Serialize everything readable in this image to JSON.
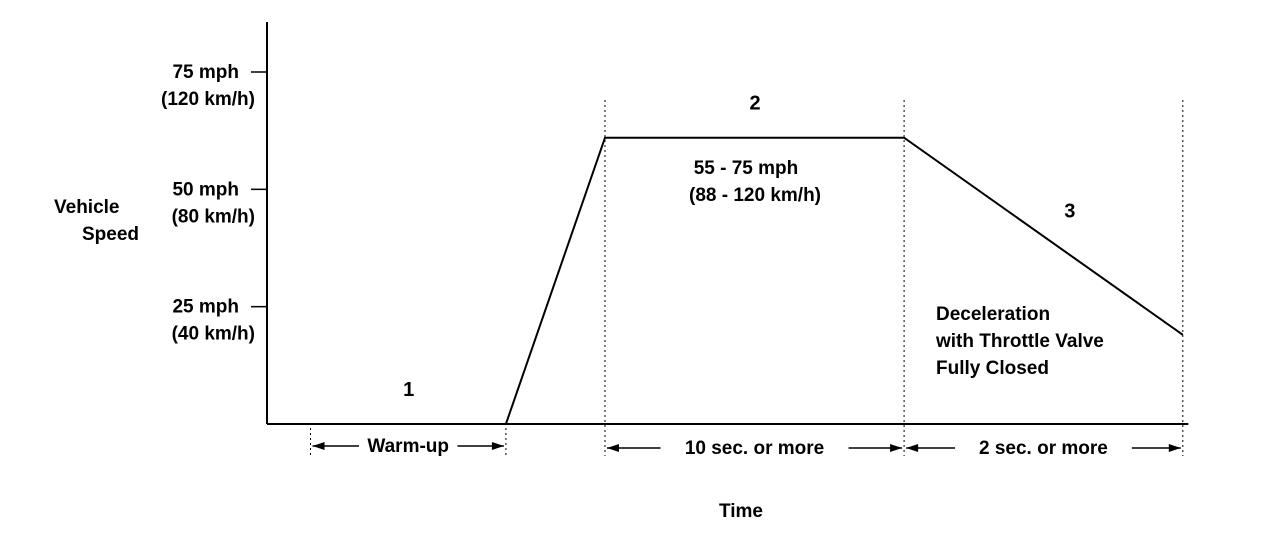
{
  "chart_data": {
    "type": "line",
    "title": "",
    "xlabel": "Time",
    "ylabel_line1": "Vehicle",
    "ylabel_line2": "Speed",
    "y_unit": "mph",
    "ylim": [
      0,
      85
    ],
    "y_ticks": [
      {
        "value": 25,
        "label": "25 mph",
        "sublabel": "(40 km/h)"
      },
      {
        "value": 50,
        "label": "50 mph",
        "sublabel": "(80 km/h)"
      },
      {
        "value": 75,
        "label": "75 mph",
        "sublabel": "(120 km/h)"
      }
    ],
    "x_unit": "relative time",
    "xlim": [
      0,
      100
    ],
    "series": [
      {
        "x": [
          4.7,
          25.8,
          36.5,
          68.8,
          98.9
        ],
        "y": [
          0,
          0,
          61,
          61,
          19
        ]
      }
    ],
    "phases": [
      {
        "label": "1",
        "x": 15.3,
        "y": 6
      },
      {
        "label": "2",
        "x": 52.7,
        "y": 67
      },
      {
        "label": "3",
        "x": 86.7,
        "y": 44
      }
    ],
    "dividers_x": [
      36.5,
      68.8,
      98.9
    ],
    "intervals": [
      {
        "label": "Warm-up",
        "x0": 4.7,
        "x1": 25.8
      },
      {
        "label": "10 sec. or more",
        "x0": 36.5,
        "x1": 68.8
      },
      {
        "label": "2 sec. or more",
        "x0": 68.8,
        "x1": 98.9
      }
    ],
    "annotations": {
      "speed_range_line1": "55 - 75 mph",
      "speed_range_line2": "(88 - 120 km/h)",
      "decel_line1": "Deceleration",
      "decel_line2": "with Throttle Valve",
      "decel_line3": "Fully Closed"
    },
    "grid": false
  }
}
